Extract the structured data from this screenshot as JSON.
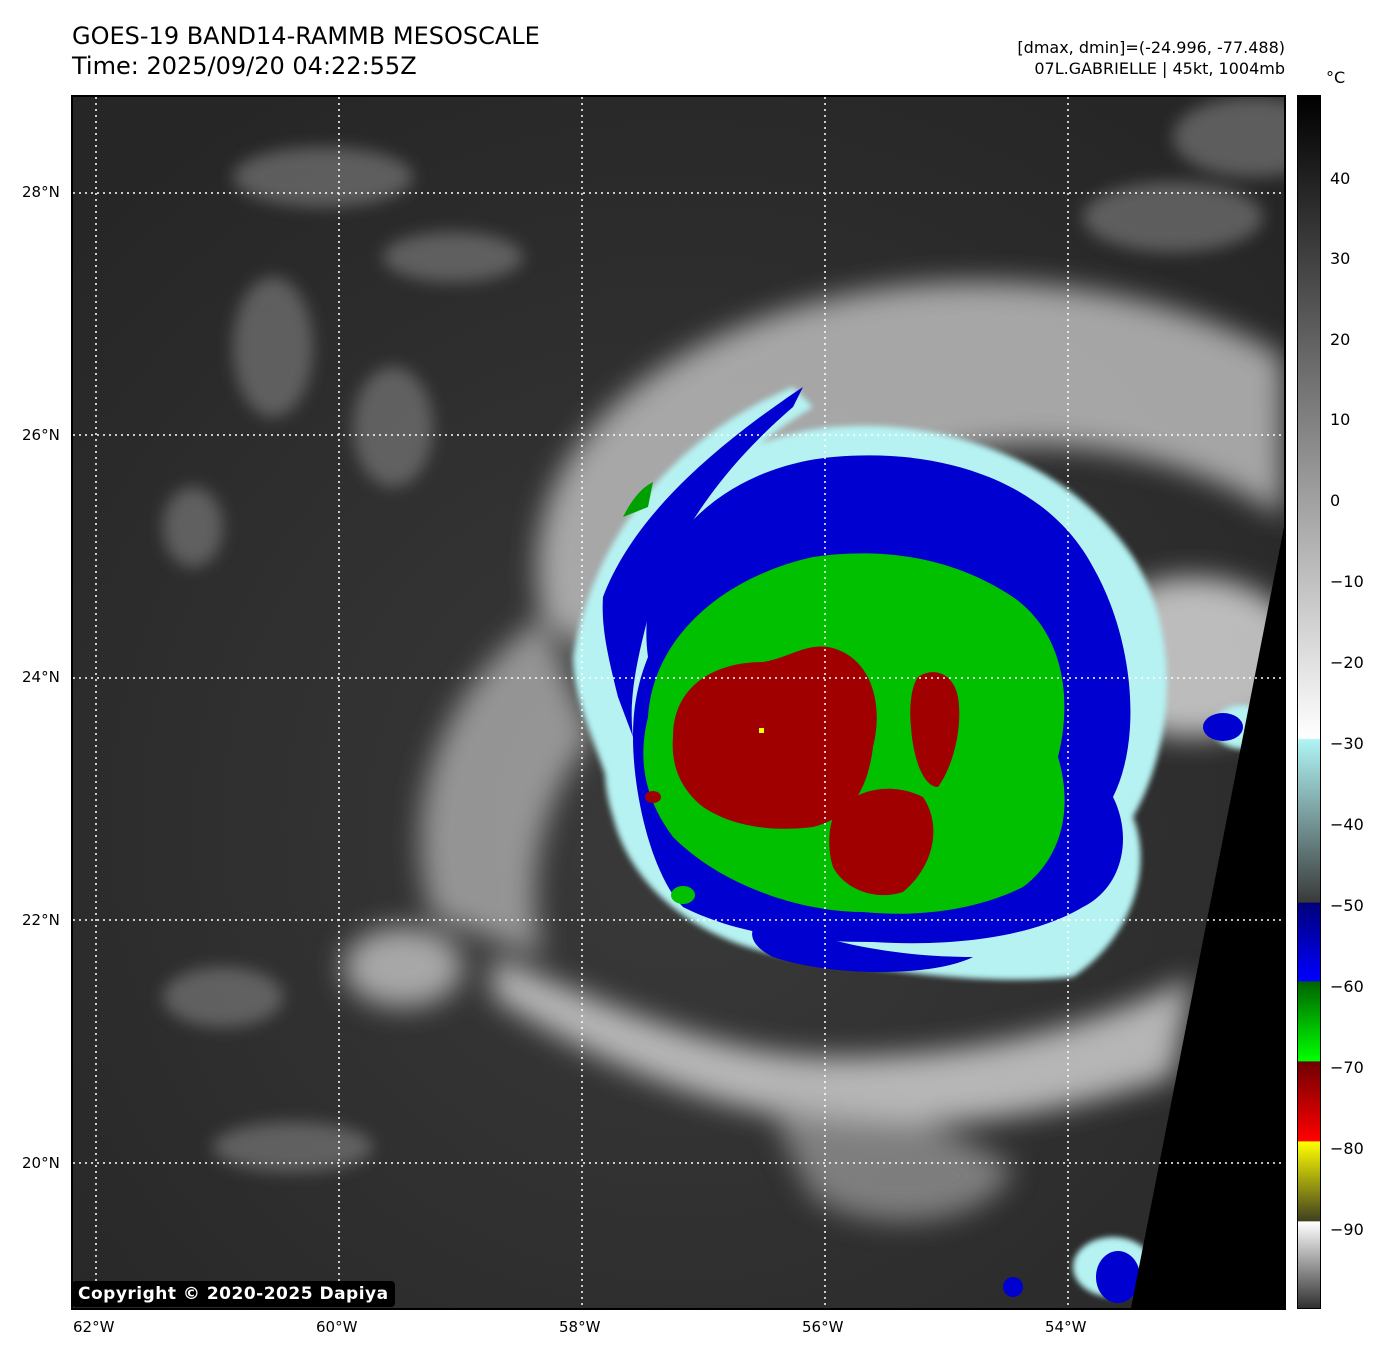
{
  "header": {
    "title_line1": "GOES-19 BAND14-RAMMB MESOSCALE",
    "title_line2": "Time: 2025/09/20 04:22:55Z",
    "meta_line1": "[dmax, dmin]=(-24.996, -77.488)",
    "meta_line2": "07L.GABRIELLE | 45kt, 1004mb"
  },
  "map": {
    "lat_labels": [
      "28°N",
      "26°N",
      "24°N",
      "22°N",
      "20°N"
    ],
    "lon_labels": [
      "62°W",
      "60°W",
      "58°W",
      "56°W",
      "54°W"
    ],
    "copyright": "Copyright © 2020-2025 Dapiya"
  },
  "colorbar": {
    "unit": "°C",
    "labels": [
      "40",
      "30",
      "20",
      "10",
      "0",
      "−10",
      "−20",
      "−30",
      "−40",
      "−50",
      "−60",
      "−70",
      "−80",
      "−90"
    ],
    "colors": {
      "blue": "#0000d0",
      "green": "#00c800",
      "red": "#b00000",
      "yellow": "#ffff00",
      "cyan": "#b0f4f4",
      "no_data": "#000000"
    }
  }
}
